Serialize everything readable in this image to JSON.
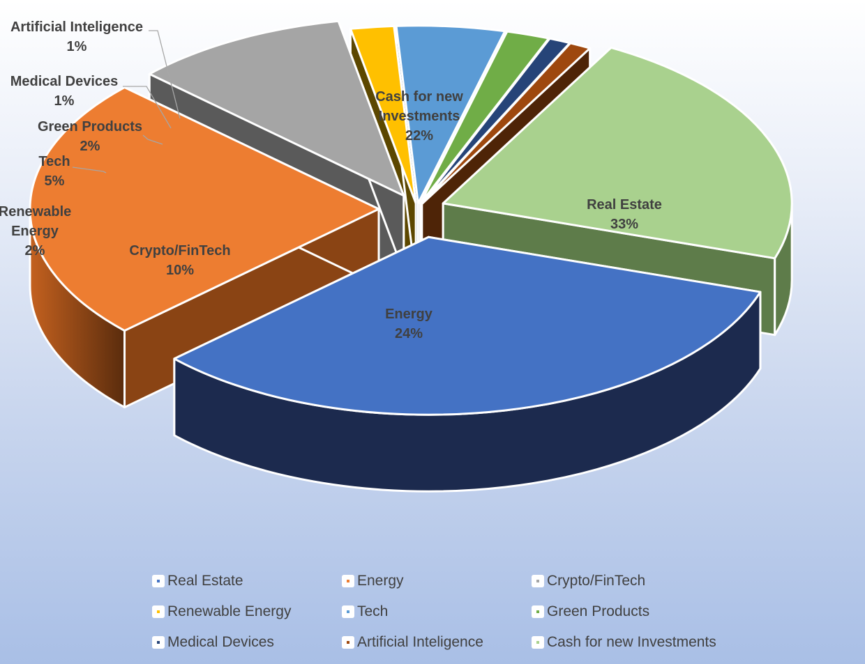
{
  "chart_data": {
    "type": "pie",
    "title": "",
    "slices": [
      {
        "label": "Real Estate",
        "value": 33,
        "display": "33%",
        "color": "#4472C4",
        "side": "#1C2A4E"
      },
      {
        "label": "Energy",
        "value": 24,
        "display": "24%",
        "color": "#ED7D31",
        "side": "#8A4414"
      },
      {
        "label": "Crypto/FinTech",
        "value": 10,
        "display": "10%",
        "color": "#A5A5A5",
        "side": "#5A5A5A"
      },
      {
        "label": "Renewable Energy",
        "value": 2,
        "display": "2%",
        "color": "#FFC000",
        "side": "#5C4700"
      },
      {
        "label": "Tech",
        "value": 5,
        "display": "5%",
        "color": "#5B9BD5",
        "side": "#2E5472"
      },
      {
        "label": "Green Products",
        "value": 2,
        "display": "2%",
        "color": "#70AD47",
        "side": "#3E5E28"
      },
      {
        "label": "Medical Devices",
        "value": 1,
        "display": "1%",
        "color": "#264478",
        "side": "#13233E"
      },
      {
        "label": "Artificial Inteligence",
        "value": 1,
        "display": "1%",
        "color": "#9E480E",
        "side": "#4E2407"
      },
      {
        "label": "Cash for new Investments",
        "value": 22,
        "display": "22%",
        "color": "#A9D18E",
        "side": "#5E7C4A"
      }
    ],
    "slice_labels": [
      {
        "lines": [
          "Real Estate"
        ],
        "pct": "33%"
      },
      {
        "lines": [
          "Energy"
        ],
        "pct": "24%"
      },
      {
        "lines": [
          "Crypto/FinTech"
        ],
        "pct": "10%"
      },
      {
        "lines": [
          "Renewable",
          "Energy"
        ],
        "pct": "2%"
      },
      {
        "lines": [
          "Tech"
        ],
        "pct": "5%"
      },
      {
        "lines": [
          "Green Products"
        ],
        "pct": "2%"
      },
      {
        "lines": [
          "Medical Devices"
        ],
        "pct": "1%"
      },
      {
        "lines": [
          "Artificial Inteligence"
        ],
        "pct": "1%"
      },
      {
        "lines": [
          "Cash for new",
          "Investments"
        ],
        "pct": "22%"
      }
    ],
    "legend": {
      "position": "bottom",
      "items": [
        "Real Estate",
        "Energy",
        "Crypto/FinTech",
        "Renewable Energy",
        "Tech",
        "Green Products",
        "Medical Devices",
        "Artificial Inteligence",
        "Cash for new Investments"
      ]
    },
    "style": "3d-exploded"
  }
}
